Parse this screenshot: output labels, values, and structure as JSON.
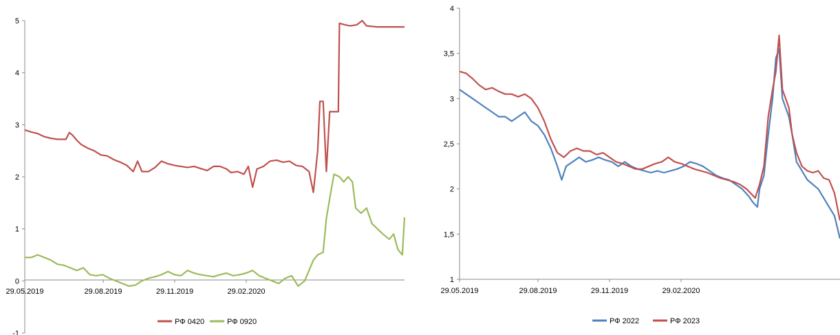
{
  "chart_data": [
    {
      "type": "line",
      "ylim": [
        -1,
        5
      ],
      "y_ticks": [
        "-1",
        "0",
        "1",
        "2",
        "3",
        "4",
        "5"
      ],
      "x_ticks": [
        "29.05.2019",
        "29.08.2019",
        "29.11.2019",
        "29.02.2020"
      ],
      "grid": false,
      "legend": "bottom",
      "series": [
        {
          "name": "РФ 0420",
          "color": "#C0504D",
          "points": [
            [
              0,
              2.9
            ],
            [
              6,
              2.86
            ],
            [
              12,
              2.83
            ],
            [
              18,
              2.77
            ],
            [
              24,
              2.74
            ],
            [
              30,
              2.72
            ],
            [
              38,
              2.72
            ],
            [
              41,
              2.85
            ],
            [
              44,
              2.8
            ],
            [
              48,
              2.7
            ],
            [
              52,
              2.62
            ],
            [
              58,
              2.55
            ],
            [
              64,
              2.5
            ],
            [
              70,
              2.42
            ],
            [
              76,
              2.4
            ],
            [
              82,
              2.33
            ],
            [
              88,
              2.28
            ],
            [
              94,
              2.22
            ],
            [
              100,
              2.1
            ],
            [
              104,
              2.3
            ],
            [
              108,
              2.1
            ],
            [
              114,
              2.1
            ],
            [
              120,
              2.18
            ],
            [
              126,
              2.3
            ],
            [
              132,
              2.25
            ],
            [
              138,
              2.22
            ],
            [
              144,
              2.2
            ],
            [
              150,
              2.18
            ],
            [
              156,
              2.2
            ],
            [
              162,
              2.16
            ],
            [
              168,
              2.12
            ],
            [
              174,
              2.2
            ],
            [
              180,
              2.2
            ],
            [
              186,
              2.15
            ],
            [
              190,
              2.08
            ],
            [
              196,
              2.1
            ],
            [
              202,
              2.05
            ],
            [
              206,
              2.2
            ],
            [
              210,
              1.8
            ],
            [
              214,
              2.15
            ],
            [
              220,
              2.2
            ],
            [
              226,
              2.3
            ],
            [
              232,
              2.32
            ],
            [
              238,
              2.28
            ],
            [
              244,
              2.3
            ],
            [
              250,
              2.22
            ],
            [
              256,
              2.2
            ],
            [
              262,
              2.1
            ],
            [
              266,
              1.7
            ],
            [
              270,
              2.5
            ],
            [
              272,
              3.45
            ],
            [
              275,
              3.45
            ],
            [
              278,
              2.1
            ],
            [
              281,
              3.25
            ],
            [
              284,
              3.25
            ],
            [
              289,
              3.25
            ],
            [
              290,
              4.95
            ],
            [
              295,
              4.92
            ],
            [
              300,
              4.9
            ],
            [
              306,
              4.92
            ],
            [
              311,
              5.0
            ],
            [
              315,
              4.9
            ],
            [
              325,
              4.88
            ],
            [
              335,
              4.88
            ],
            [
              350,
              4.88
            ]
          ]
        },
        {
          "name": "РФ 0920",
          "color": "#9BBB59",
          "points": [
            [
              0,
              0.45
            ],
            [
              6,
              0.45
            ],
            [
              12,
              0.5
            ],
            [
              18,
              0.45
            ],
            [
              24,
              0.4
            ],
            [
              30,
              0.32
            ],
            [
              36,
              0.3
            ],
            [
              42,
              0.25
            ],
            [
              48,
              0.2
            ],
            [
              54,
              0.25
            ],
            [
              60,
              0.12
            ],
            [
              66,
              0.1
            ],
            [
              72,
              0.12
            ],
            [
              78,
              0.05
            ],
            [
              84,
              0.0
            ],
            [
              90,
              -0.05
            ],
            [
              96,
              -0.1
            ],
            [
              102,
              -0.08
            ],
            [
              108,
              0.0
            ],
            [
              114,
              0.05
            ],
            [
              120,
              0.08
            ],
            [
              126,
              0.12
            ],
            [
              132,
              0.18
            ],
            [
              138,
              0.12
            ],
            [
              144,
              0.1
            ],
            [
              150,
              0.2
            ],
            [
              156,
              0.15
            ],
            [
              162,
              0.12
            ],
            [
              168,
              0.1
            ],
            [
              174,
              0.08
            ],
            [
              180,
              0.12
            ],
            [
              186,
              0.15
            ],
            [
              192,
              0.1
            ],
            [
              198,
              0.12
            ],
            [
              204,
              0.15
            ],
            [
              210,
              0.2
            ],
            [
              216,
              0.1
            ],
            [
              222,
              0.05
            ],
            [
              228,
              0.0
            ],
            [
              234,
              -0.05
            ],
            [
              240,
              0.05
            ],
            [
              246,
              0.1
            ],
            [
              252,
              -0.1
            ],
            [
              258,
              0.0
            ],
            [
              262,
              0.2
            ],
            [
              266,
              0.4
            ],
            [
              270,
              0.5
            ],
            [
              275,
              0.55
            ],
            [
              278,
              1.2
            ],
            [
              282,
              1.7
            ],
            [
              285,
              2.05
            ],
            [
              290,
              2.0
            ],
            [
              294,
              1.9
            ],
            [
              298,
              2.0
            ],
            [
              302,
              1.9
            ],
            [
              305,
              1.4
            ],
            [
              310,
              1.3
            ],
            [
              315,
              1.4
            ],
            [
              320,
              1.1
            ],
            [
              325,
              1.0
            ],
            [
              330,
              0.9
            ],
            [
              336,
              0.8
            ],
            [
              340,
              0.9
            ],
            [
              344,
              0.6
            ],
            [
              348,
              0.5
            ],
            [
              350,
              1.22
            ]
          ]
        }
      ]
    },
    {
      "type": "line",
      "ylim": [
        1,
        4
      ],
      "y_ticks": [
        "1",
        "1,5",
        "2",
        "2,5",
        "3",
        "3,5",
        "4"
      ],
      "x_ticks": [
        "29.05.2019",
        "29.08.2019",
        "29.11.2019",
        "29.02.2020"
      ],
      "grid": false,
      "legend": "bottom",
      "series": [
        {
          "name": "РФ 2022",
          "color": "#4F81BD",
          "points": [
            [
              0,
              3.1
            ],
            [
              6,
              3.05
            ],
            [
              12,
              3.0
            ],
            [
              18,
              2.95
            ],
            [
              24,
              2.9
            ],
            [
              30,
              2.85
            ],
            [
              36,
              2.8
            ],
            [
              42,
              2.8
            ],
            [
              48,
              2.75
            ],
            [
              54,
              2.8
            ],
            [
              60,
              2.85
            ],
            [
              66,
              2.75
            ],
            [
              72,
              2.7
            ],
            [
              78,
              2.6
            ],
            [
              84,
              2.45
            ],
            [
              90,
              2.25
            ],
            [
              94,
              2.1
            ],
            [
              98,
              2.25
            ],
            [
              104,
              2.3
            ],
            [
              110,
              2.35
            ],
            [
              116,
              2.3
            ],
            [
              122,
              2.32
            ],
            [
              128,
              2.35
            ],
            [
              134,
              2.32
            ],
            [
              140,
              2.3
            ],
            [
              146,
              2.25
            ],
            [
              152,
              2.3
            ],
            [
              158,
              2.25
            ],
            [
              164,
              2.22
            ],
            [
              170,
              2.2
            ],
            [
              176,
              2.18
            ],
            [
              182,
              2.2
            ],
            [
              188,
              2.18
            ],
            [
              194,
              2.2
            ],
            [
              200,
              2.22
            ],
            [
              206,
              2.25
            ],
            [
              212,
              2.3
            ],
            [
              218,
              2.28
            ],
            [
              224,
              2.25
            ],
            [
              230,
              2.2
            ],
            [
              236,
              2.15
            ],
            [
              242,
              2.12
            ],
            [
              248,
              2.1
            ],
            [
              254,
              2.05
            ],
            [
              260,
              2.0
            ],
            [
              266,
              1.92
            ],
            [
              270,
              1.85
            ],
            [
              274,
              1.8
            ],
            [
              276,
              2.0
            ],
            [
              280,
              2.15
            ],
            [
              284,
              2.6
            ],
            [
              288,
              3.0
            ],
            [
              291,
              3.45
            ],
            [
              294,
              3.55
            ],
            [
              297,
              3.0
            ],
            [
              300,
              2.9
            ],
            [
              303,
              2.8
            ],
            [
              306,
              2.6
            ],
            [
              310,
              2.3
            ],
            [
              315,
              2.2
            ],
            [
              320,
              2.1
            ],
            [
              325,
              2.05
            ],
            [
              330,
              2.0
            ],
            [
              335,
              1.9
            ],
            [
              340,
              1.8
            ],
            [
              345,
              1.7
            ],
            [
              350,
              1.45
            ]
          ]
        },
        {
          "name": "РФ 2023",
          "color": "#C0504D",
          "points": [
            [
              0,
              3.3
            ],
            [
              6,
              3.28
            ],
            [
              12,
              3.22
            ],
            [
              18,
              3.15
            ],
            [
              24,
              3.1
            ],
            [
              30,
              3.12
            ],
            [
              36,
              3.08
            ],
            [
              42,
              3.05
            ],
            [
              48,
              3.05
            ],
            [
              54,
              3.02
            ],
            [
              60,
              3.05
            ],
            [
              66,
              3.0
            ],
            [
              72,
              2.9
            ],
            [
              78,
              2.75
            ],
            [
              84,
              2.55
            ],
            [
              90,
              2.4
            ],
            [
              96,
              2.35
            ],
            [
              102,
              2.42
            ],
            [
              108,
              2.45
            ],
            [
              114,
              2.42
            ],
            [
              120,
              2.42
            ],
            [
              126,
              2.38
            ],
            [
              132,
              2.4
            ],
            [
              138,
              2.35
            ],
            [
              144,
              2.3
            ],
            [
              150,
              2.28
            ],
            [
              156,
              2.25
            ],
            [
              162,
              2.22
            ],
            [
              168,
              2.22
            ],
            [
              174,
              2.25
            ],
            [
              180,
              2.28
            ],
            [
              186,
              2.3
            ],
            [
              192,
              2.35
            ],
            [
              198,
              2.3
            ],
            [
              204,
              2.28
            ],
            [
              210,
              2.25
            ],
            [
              216,
              2.22
            ],
            [
              222,
              2.2
            ],
            [
              228,
              2.18
            ],
            [
              234,
              2.15
            ],
            [
              240,
              2.12
            ],
            [
              246,
              2.1
            ],
            [
              252,
              2.08
            ],
            [
              258,
              2.05
            ],
            [
              264,
              2.0
            ],
            [
              268,
              1.95
            ],
            [
              272,
              1.9
            ],
            [
              276,
              2.05
            ],
            [
              280,
              2.25
            ],
            [
              284,
              2.8
            ],
            [
              288,
              3.1
            ],
            [
              291,
              3.3
            ],
            [
              294,
              3.7
            ],
            [
              297,
              3.1
            ],
            [
              300,
              3.0
            ],
            [
              303,
              2.9
            ],
            [
              306,
              2.6
            ],
            [
              310,
              2.4
            ],
            [
              315,
              2.25
            ],
            [
              320,
              2.2
            ],
            [
              325,
              2.18
            ],
            [
              330,
              2.2
            ],
            [
              335,
              2.12
            ],
            [
              340,
              2.1
            ],
            [
              345,
              1.95
            ],
            [
              350,
              1.65
            ]
          ]
        }
      ]
    }
  ]
}
